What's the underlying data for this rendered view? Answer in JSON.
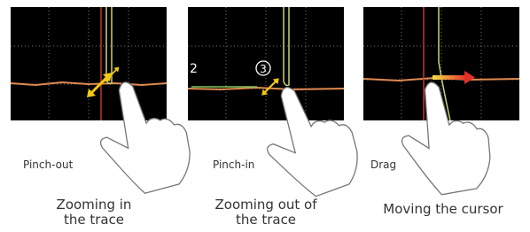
{
  "panels": [
    {
      "gesture": "Pinch-out",
      "caption": [
        "Zooming in",
        "the trace"
      ]
    },
    {
      "gesture": "Pinch-in",
      "caption": [
        "Zooming out of",
        "the trace"
      ],
      "markers": [
        "2",
        "3"
      ]
    },
    {
      "gesture": "Drag",
      "caption": [
        "Moving the cursor"
      ]
    }
  ]
}
